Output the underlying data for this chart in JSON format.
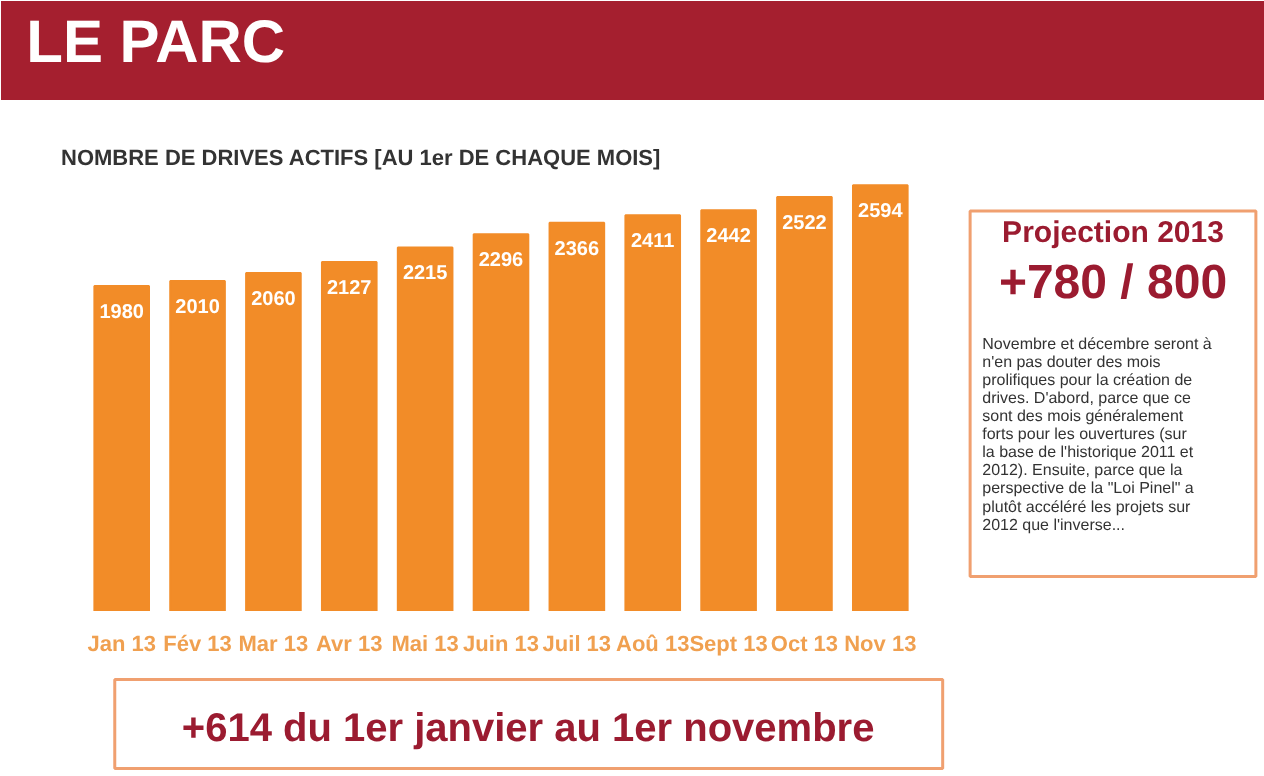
{
  "chart_data": {
    "type": "bar",
    "title": "LE PARC",
    "subtitle": "NOMBRE DE DRIVES ACTIFS [AU 1er DE CHAQUE MOIS]",
    "categories": [
      "Jan 13",
      "Fév 13",
      "Mar 13",
      "Avr 13",
      "Mai 13",
      "Juin 13",
      "Juil 13",
      "Aoû 13",
      "Sept 13",
      "Oct 13",
      "Nov 13"
    ],
    "values": [
      1980,
      2010,
      2060,
      2127,
      2215,
      2296,
      2366,
      2411,
      2442,
      2522,
      2594
    ],
    "color": "#f28c28",
    "data_labels": true,
    "tick_labels": "x",
    "annotations": [
      "Projection 2013",
      "+780 / 800",
      "Novembre et décembre seront à n'en pas douter des mois prolifiques pour la création de drives. D'abord, parce que ce sont des mois généralement forts pour les ouvertures (sur la base de l'historique 2011 et 2012). Ensuite, parce que la perspective de la \"Loi Pinel\" a plutôt accéléré les projets sur 2012 que l'inverse...",
      "+614 du 1er janvier au 1er novembre"
    ]
  }
}
